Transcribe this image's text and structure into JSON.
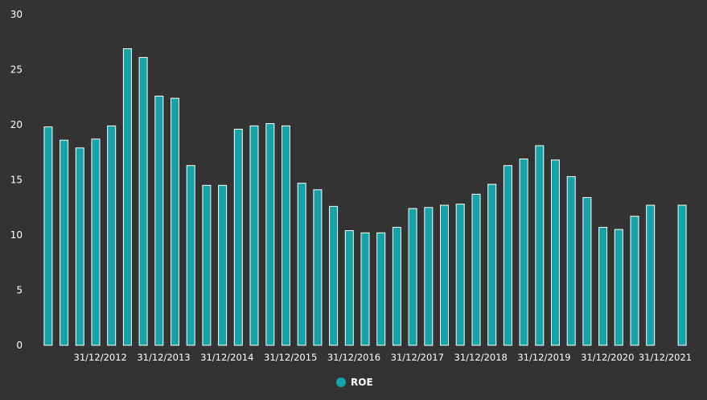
{
  "chart_data": {
    "type": "bar",
    "ylim": [
      0,
      30
    ],
    "yticks": [
      "0",
      "5",
      "10",
      "15",
      "20",
      "25",
      "30"
    ],
    "x_tick_labels": [
      "31/12/2012",
      "31/12/2013",
      "31/12/2014",
      "31/12/2015",
      "31/12/2016",
      "31/12/2017",
      "31/12/2018",
      "31/12/2019",
      "31/12/2020",
      "31/12/2021"
    ],
    "series": [
      {
        "name": "ROE",
        "color": "#14A3A8",
        "values": [
          19.8,
          18.6,
          17.9,
          18.7,
          19.9,
          26.9,
          26.1,
          22.6,
          22.4,
          16.3,
          14.5,
          14.5,
          19.6,
          19.9,
          20.1,
          19.9,
          14.7,
          14.1,
          12.6,
          10.4,
          10.2,
          10.2,
          10.7,
          12.4,
          12.5,
          12.7,
          12.8,
          13.7,
          14.6,
          16.3,
          16.9,
          18.1,
          16.8,
          15.3,
          13.4,
          10.7,
          10.5,
          11.7,
          12.7,
          null,
          12.7
        ]
      }
    ],
    "grid": false,
    "legend_position": "bottom-center"
  }
}
